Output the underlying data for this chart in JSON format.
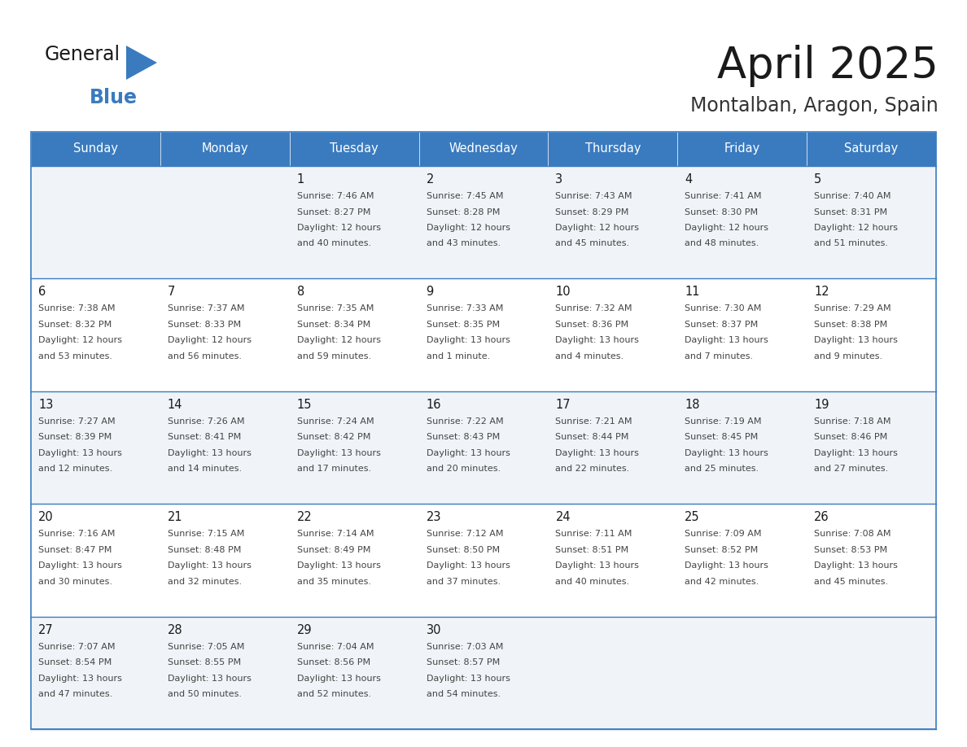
{
  "title": "April 2025",
  "subtitle": "Montalban, Aragon, Spain",
  "days_of_week": [
    "Sunday",
    "Monday",
    "Tuesday",
    "Wednesday",
    "Thursday",
    "Friday",
    "Saturday"
  ],
  "header_bg": "#3a7bbf",
  "header_text": "#ffffff",
  "row_bg_even": "#f0f4f8",
  "row_bg_odd": "#ffffff",
  "cell_border": "#3a7bbf",
  "title_color": "#1a1a1a",
  "subtitle_color": "#333333",
  "day_num_color": "#1a1a1a",
  "cell_text_color": "#444444",
  "logo_general_color": "#1a1a1a",
  "logo_blue_color": "#3a7bbf",
  "calendar_data": [
    [
      {
        "day": "",
        "sunrise": "",
        "sunset": "",
        "daylight": ""
      },
      {
        "day": "",
        "sunrise": "",
        "sunset": "",
        "daylight": ""
      },
      {
        "day": "1",
        "sunrise": "7:46 AM",
        "sunset": "8:27 PM",
        "daylight": "12 hours\nand 40 minutes."
      },
      {
        "day": "2",
        "sunrise": "7:45 AM",
        "sunset": "8:28 PM",
        "daylight": "12 hours\nand 43 minutes."
      },
      {
        "day": "3",
        "sunrise": "7:43 AM",
        "sunset": "8:29 PM",
        "daylight": "12 hours\nand 45 minutes."
      },
      {
        "day": "4",
        "sunrise": "7:41 AM",
        "sunset": "8:30 PM",
        "daylight": "12 hours\nand 48 minutes."
      },
      {
        "day": "5",
        "sunrise": "7:40 AM",
        "sunset": "8:31 PM",
        "daylight": "12 hours\nand 51 minutes."
      }
    ],
    [
      {
        "day": "6",
        "sunrise": "7:38 AM",
        "sunset": "8:32 PM",
        "daylight": "12 hours\nand 53 minutes."
      },
      {
        "day": "7",
        "sunrise": "7:37 AM",
        "sunset": "8:33 PM",
        "daylight": "12 hours\nand 56 minutes."
      },
      {
        "day": "8",
        "sunrise": "7:35 AM",
        "sunset": "8:34 PM",
        "daylight": "12 hours\nand 59 minutes."
      },
      {
        "day": "9",
        "sunrise": "7:33 AM",
        "sunset": "8:35 PM",
        "daylight": "13 hours\nand 1 minute."
      },
      {
        "day": "10",
        "sunrise": "7:32 AM",
        "sunset": "8:36 PM",
        "daylight": "13 hours\nand 4 minutes."
      },
      {
        "day": "11",
        "sunrise": "7:30 AM",
        "sunset": "8:37 PM",
        "daylight": "13 hours\nand 7 minutes."
      },
      {
        "day": "12",
        "sunrise": "7:29 AM",
        "sunset": "8:38 PM",
        "daylight": "13 hours\nand 9 minutes."
      }
    ],
    [
      {
        "day": "13",
        "sunrise": "7:27 AM",
        "sunset": "8:39 PM",
        "daylight": "13 hours\nand 12 minutes."
      },
      {
        "day": "14",
        "sunrise": "7:26 AM",
        "sunset": "8:41 PM",
        "daylight": "13 hours\nand 14 minutes."
      },
      {
        "day": "15",
        "sunrise": "7:24 AM",
        "sunset": "8:42 PM",
        "daylight": "13 hours\nand 17 minutes."
      },
      {
        "day": "16",
        "sunrise": "7:22 AM",
        "sunset": "8:43 PM",
        "daylight": "13 hours\nand 20 minutes."
      },
      {
        "day": "17",
        "sunrise": "7:21 AM",
        "sunset": "8:44 PM",
        "daylight": "13 hours\nand 22 minutes."
      },
      {
        "day": "18",
        "sunrise": "7:19 AM",
        "sunset": "8:45 PM",
        "daylight": "13 hours\nand 25 minutes."
      },
      {
        "day": "19",
        "sunrise": "7:18 AM",
        "sunset": "8:46 PM",
        "daylight": "13 hours\nand 27 minutes."
      }
    ],
    [
      {
        "day": "20",
        "sunrise": "7:16 AM",
        "sunset": "8:47 PM",
        "daylight": "13 hours\nand 30 minutes."
      },
      {
        "day": "21",
        "sunrise": "7:15 AM",
        "sunset": "8:48 PM",
        "daylight": "13 hours\nand 32 minutes."
      },
      {
        "day": "22",
        "sunrise": "7:14 AM",
        "sunset": "8:49 PM",
        "daylight": "13 hours\nand 35 minutes."
      },
      {
        "day": "23",
        "sunrise": "7:12 AM",
        "sunset": "8:50 PM",
        "daylight": "13 hours\nand 37 minutes."
      },
      {
        "day": "24",
        "sunrise": "7:11 AM",
        "sunset": "8:51 PM",
        "daylight": "13 hours\nand 40 minutes."
      },
      {
        "day": "25",
        "sunrise": "7:09 AM",
        "sunset": "8:52 PM",
        "daylight": "13 hours\nand 42 minutes."
      },
      {
        "day": "26",
        "sunrise": "7:08 AM",
        "sunset": "8:53 PM",
        "daylight": "13 hours\nand 45 minutes."
      }
    ],
    [
      {
        "day": "27",
        "sunrise": "7:07 AM",
        "sunset": "8:54 PM",
        "daylight": "13 hours\nand 47 minutes."
      },
      {
        "day": "28",
        "sunrise": "7:05 AM",
        "sunset": "8:55 PM",
        "daylight": "13 hours\nand 50 minutes."
      },
      {
        "day": "29",
        "sunrise": "7:04 AM",
        "sunset": "8:56 PM",
        "daylight": "13 hours\nand 52 minutes."
      },
      {
        "day": "30",
        "sunrise": "7:03 AM",
        "sunset": "8:57 PM",
        "daylight": "13 hours\nand 54 minutes."
      },
      {
        "day": "",
        "sunrise": "",
        "sunset": "",
        "daylight": ""
      },
      {
        "day": "",
        "sunrise": "",
        "sunset": "",
        "daylight": ""
      },
      {
        "day": "",
        "sunrise": "",
        "sunset": "",
        "daylight": ""
      }
    ]
  ]
}
